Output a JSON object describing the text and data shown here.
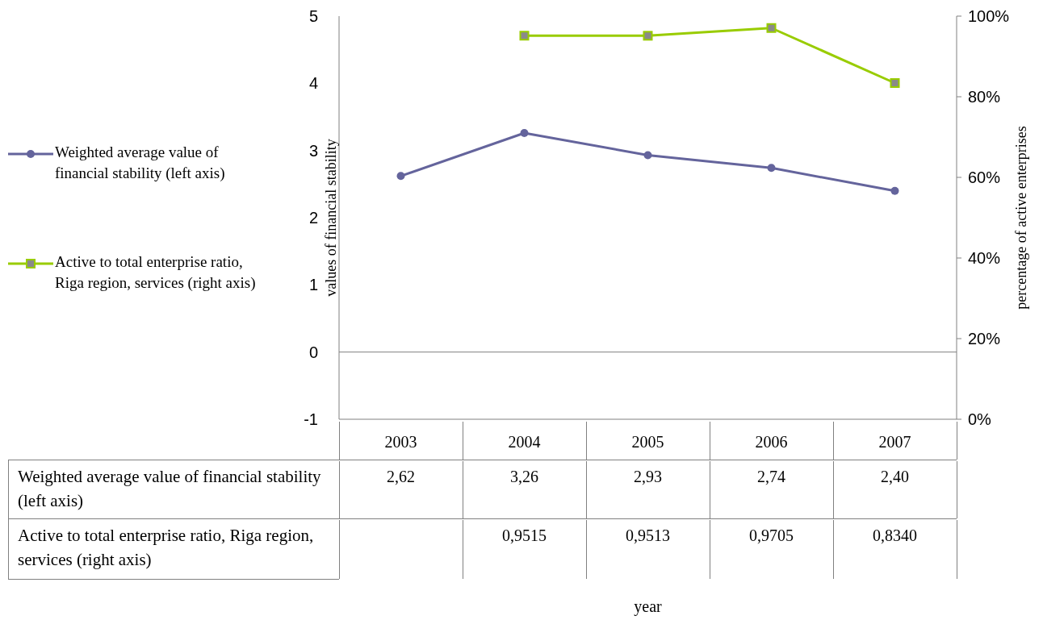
{
  "chart_data": {
    "type": "line",
    "annotations": [
      "year"
    ],
    "ylabel": "values of financial stability",
    "y2label": "percentage of active enterprises",
    "categories": [
      "2003",
      "2004",
      "2005",
      "2006",
      "2007"
    ],
    "series": [
      {
        "name": "Weighted average value of financial stability (left axis)",
        "color": "#64649c",
        "marker": "circle",
        "values": [
          2.62,
          3.26,
          2.93,
          2.74,
          2.4
        ],
        "value_labels": [
          "2,62",
          "3,26",
          "2,93",
          "2,74",
          "2,40"
        ]
      },
      {
        "name": "Active to total enterprise ratio, Riga region, services (right axis)",
        "color": "#99cc00",
        "marker": "square",
        "axis": "y2",
        "values": [
          null,
          0.9515,
          0.9513,
          0.9705,
          0.834
        ],
        "value_labels": [
          null,
          "0,9515",
          "0,9513",
          "0,9705",
          "0,8340"
        ]
      }
    ],
    "ylim": [
      -1,
      5
    ],
    "yticks": [
      -1,
      0,
      1,
      2,
      3,
      4,
      5
    ],
    "y2lim": [
      0,
      1
    ],
    "y2ticks": [
      {
        "value": 0,
        "label": "0%"
      },
      {
        "value": 0.2,
        "label": "20%"
      },
      {
        "value": 0.4,
        "label": "40%"
      },
      {
        "value": 0.6,
        "label": "60%"
      },
      {
        "value": 0.8,
        "label": "80%"
      },
      {
        "value": 1,
        "label": "100%"
      }
    ],
    "ref_lines": [
      {
        "axis": "y",
        "value": 0,
        "color": "#808080"
      }
    ],
    "grid": false,
    "legend": "left"
  }
}
